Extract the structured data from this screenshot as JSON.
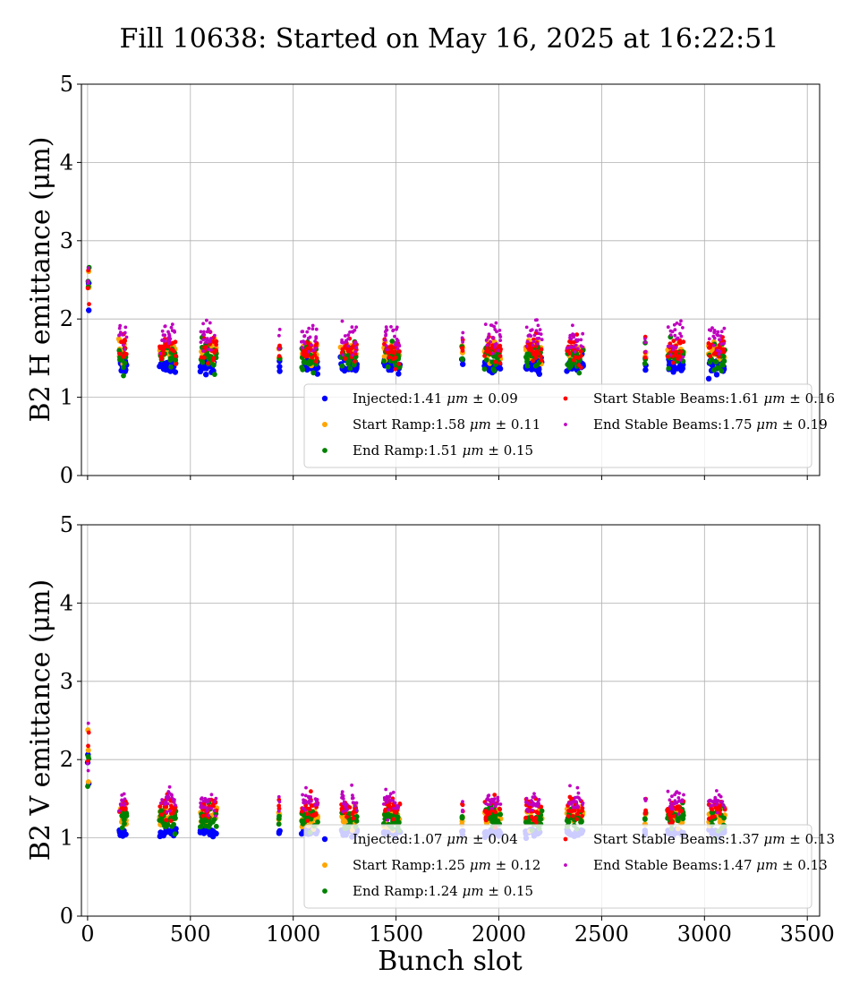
{
  "figure": {
    "title": "Fill 10638: Started on May 16, 2025 at 16:22:51",
    "xlabel": "Bunch slot"
  },
  "chart_data": [
    {
      "type": "scatter",
      "ylabel": "B2 H emittance (μm)",
      "xlim": [
        -30,
        3560
      ],
      "ylim": [
        0,
        5
      ],
      "xticks": [
        0,
        500,
        1000,
        1500,
        2000,
        2500,
        3000,
        3500
      ],
      "yticks": [
        0,
        1,
        2,
        3,
        4,
        5
      ],
      "show_x_tick_labels": false,
      "grid": true,
      "legend_placement": "lower-right",
      "series": [
        {
          "name": "Injected:1.41 μm ± 0.09",
          "label_parts": [
            "Injected:1.41 ",
            "μm",
            " ± 0.09"
          ],
          "color": "#0000ff",
          "mean": 1.41,
          "std": 0.09,
          "marker_size": 3.2
        },
        {
          "name": "Start Ramp:1.58 μm ± 0.11",
          "label_parts": [
            "Start Ramp:1.58 ",
            "μm",
            " ± 0.11"
          ],
          "color": "#ffa500",
          "mean": 1.58,
          "std": 0.11,
          "marker_size": 3.0
        },
        {
          "name": "End Ramp:1.51 μm ± 0.15",
          "label_parts": [
            "End Ramp:1.51 ",
            "μm",
            " ± 0.15"
          ],
          "color": "#008000",
          "mean": 1.51,
          "std": 0.15,
          "marker_size": 2.9
        },
        {
          "name": "Start Stable Beams:1.61 μm ± 0.16",
          "label_parts": [
            "Start Stable Beams:1.61 ",
            "μm",
            " ± 0.16"
          ],
          "color": "#ff0000",
          "mean": 1.61,
          "std": 0.16,
          "marker_size": 2.4
        },
        {
          "name": "End Stable Beams:1.75 μm ± 0.19",
          "label_parts": [
            "End Stable Beams:1.75 ",
            "μm",
            " ± 0.19"
          ],
          "color": "#bf00bf",
          "mean": 1.75,
          "std": 0.19,
          "marker_size": 1.9
        }
      ]
    },
    {
      "type": "scatter",
      "ylabel": "B2 V emittance (μm)",
      "xlim": [
        -30,
        3560
      ],
      "ylim": [
        0,
        5
      ],
      "xticks": [
        0,
        500,
        1000,
        1500,
        2000,
        2500,
        3000,
        3500
      ],
      "yticks": [
        0,
        1,
        2,
        3,
        4,
        5
      ],
      "show_x_tick_labels": true,
      "grid": true,
      "legend_placement": "lower-right",
      "series": [
        {
          "name": "Injected:1.07 μm ± 0.04",
          "label_parts": [
            "Injected:1.07 ",
            "μm",
            " ± 0.04"
          ],
          "color": "#0000ff",
          "mean": 1.07,
          "std": 0.04,
          "marker_size": 3.2
        },
        {
          "name": "Start Ramp:1.25 μm ± 0.12",
          "label_parts": [
            "Start Ramp:1.25 ",
            "μm",
            " ± 0.12"
          ],
          "color": "#ffa500",
          "mean": 1.25,
          "std": 0.12,
          "marker_size": 3.0
        },
        {
          "name": "End Ramp:1.24 μm ± 0.15",
          "label_parts": [
            "End Ramp:1.24 ",
            "μm",
            " ± 0.15"
          ],
          "color": "#008000",
          "mean": 1.24,
          "std": 0.15,
          "marker_size": 2.9
        },
        {
          "name": "Start Stable Beams:1.37 μm ± 0.13",
          "label_parts": [
            "Start Stable Beams:1.37 ",
            "μm",
            " ± 0.13"
          ],
          "color": "#ff0000",
          "mean": 1.37,
          "std": 0.13,
          "marker_size": 2.4
        },
        {
          "name": "End Stable Beams:1.47 μm ± 0.13",
          "label_parts": [
            "End Stable Beams:1.47 ",
            "μm",
            " ± 0.13"
          ],
          "color": "#bf00bf",
          "mean": 1.47,
          "std": 0.13,
          "marker_size": 1.9
        }
      ]
    }
  ],
  "bunch_trains": [
    {
      "start": 0,
      "end": 8
    },
    {
      "start": 152,
      "end": 190
    },
    {
      "start": 350,
      "end": 430
    },
    {
      "start": 548,
      "end": 628
    },
    {
      "start": 930,
      "end": 935
    },
    {
      "start": 1040,
      "end": 1120
    },
    {
      "start": 1230,
      "end": 1310
    },
    {
      "start": 1440,
      "end": 1520
    },
    {
      "start": 1820,
      "end": 1825
    },
    {
      "start": 1930,
      "end": 2010
    },
    {
      "start": 2130,
      "end": 2210
    },
    {
      "start": 2330,
      "end": 2410
    },
    {
      "start": 2710,
      "end": 2715
    },
    {
      "start": 2820,
      "end": 2900
    },
    {
      "start": 3020,
      "end": 3100
    }
  ]
}
